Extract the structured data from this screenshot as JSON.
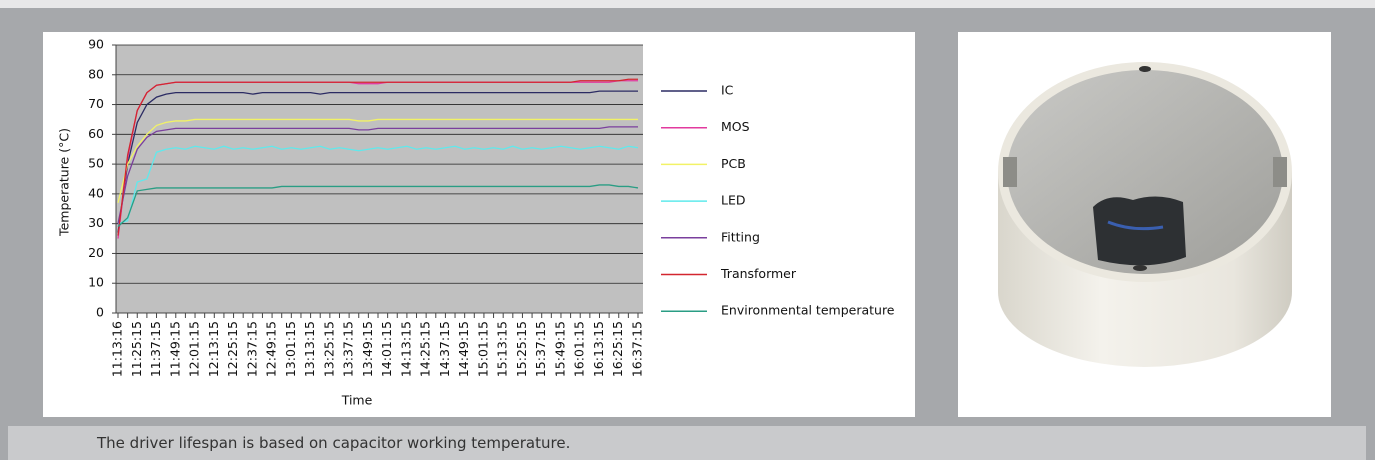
{
  "chart_data": {
    "type": "line",
    "x_label": "Time",
    "y_label": "Temperature (°C)",
    "categories": [
      "11:13:16",
      null,
      "11:25:15",
      null,
      "11:37:15",
      null,
      "11:49:15",
      null,
      "12:01:15",
      null,
      "12:13:15",
      null,
      "12:25:15",
      null,
      "12:37:15",
      null,
      "12:49:15",
      null,
      "13:01:15",
      null,
      "13:13:15",
      null,
      "13:25:15",
      null,
      "13:37:15",
      null,
      "13:49:15",
      null,
      "14:01:15",
      null,
      "14:13:15",
      null,
      "14:25:15",
      null,
      "14:37:15",
      null,
      "14:49:15",
      null,
      "15:01:15",
      null,
      "15:13:15",
      null,
      "15:25:15",
      null,
      "15:37:15",
      null,
      "15:49:15",
      null,
      "16:01:15",
      null,
      "16:13:15",
      null,
      "16:25:15",
      null,
      "16:37:15"
    ],
    "series": [
      {
        "name": "IC",
        "color": "#2b2b63",
        "values": [
          27,
          50,
          64,
          70,
          72.5,
          73.5,
          74,
          74,
          74,
          74,
          74,
          74,
          74,
          74,
          73.5,
          74,
          74,
          74,
          74,
          74,
          74,
          73.5,
          74,
          74,
          74,
          74,
          74,
          74,
          74,
          74,
          74,
          74,
          74,
          74,
          74,
          74,
          74,
          74,
          74,
          74,
          74,
          74,
          74,
          74,
          74,
          74,
          74,
          74,
          74,
          74,
          74.5,
          74.5,
          74.5,
          74.5,
          74.5
        ]
      },
      {
        "name": "MOS",
        "color": "#e23a9e",
        "values": [
          25,
          52,
          68,
          74,
          76.5,
          77,
          77.5,
          77.5,
          77.5,
          77.5,
          77.5,
          77.5,
          77.5,
          77.5,
          77.5,
          77.5,
          77.5,
          77.5,
          77.5,
          77.5,
          77.5,
          77.5,
          77.5,
          77.5,
          77.5,
          77,
          77,
          77,
          77.5,
          77.5,
          77.5,
          77.5,
          77.5,
          77.5,
          77.5,
          77.5,
          77.5,
          77.5,
          77.5,
          77.5,
          77.5,
          77.5,
          77.5,
          77.5,
          77.5,
          77.5,
          77.5,
          77.5,
          77.5,
          77.5,
          77.5,
          77.5,
          78,
          78,
          78
        ]
      },
      {
        "name": "PCB",
        "color": "#f2f266",
        "values": [
          37,
          50,
          56,
          60,
          63,
          64,
          64.5,
          64.5,
          65,
          65,
          65,
          65,
          65,
          65,
          65,
          65,
          65,
          65,
          65,
          65,
          65,
          65,
          65,
          65,
          65,
          64.5,
          64.5,
          65,
          65,
          65,
          65,
          65,
          65,
          65,
          65,
          65,
          65,
          65,
          65,
          65,
          65,
          65,
          65,
          65,
          65,
          65,
          65,
          65,
          65,
          65,
          65,
          65,
          65,
          65,
          65
        ]
      },
      {
        "name": "LED",
        "color": "#5fe9ec",
        "values": [
          30,
          31,
          44,
          45,
          54,
          55,
          55.5,
          55,
          56,
          55.5,
          55,
          56,
          55,
          55.5,
          55,
          55.5,
          56,
          55,
          55.5,
          55,
          55.5,
          56,
          55,
          55.5,
          55,
          54.5,
          55,
          55.5,
          55,
          55.5,
          56,
          55,
          55.5,
          55,
          55.5,
          56,
          55,
          55.5,
          55,
          55.5,
          55,
          56,
          55,
          55.5,
          55,
          55.5,
          56,
          55.5,
          55,
          55.5,
          56,
          55.5,
          55,
          56,
          55.5
        ]
      },
      {
        "name": "Fitting",
        "color": "#7a3f9d",
        "values": [
          30,
          46,
          55,
          59,
          61,
          61.5,
          62,
          62,
          62,
          62,
          62,
          62,
          62,
          62,
          62,
          62,
          62,
          62,
          62,
          62,
          62,
          62,
          62,
          62,
          62,
          61.5,
          61.5,
          62,
          62,
          62,
          62,
          62,
          62,
          62,
          62,
          62,
          62,
          62,
          62,
          62,
          62,
          62,
          62,
          62,
          62,
          62,
          62,
          62,
          62,
          62,
          62,
          62.5,
          62.5,
          62.5,
          62.5
        ]
      },
      {
        "name": "Transformer",
        "color": "#d3262f",
        "values": [
          26,
          53,
          68,
          74,
          76.5,
          77,
          77.5,
          77.5,
          77.5,
          77.5,
          77.5,
          77.5,
          77.5,
          77.5,
          77.5,
          77.5,
          77.5,
          77.5,
          77.5,
          77.5,
          77.5,
          77.5,
          77.5,
          77.5,
          77.5,
          77.5,
          77.5,
          77.5,
          77.5,
          77.5,
          77.5,
          77.5,
          77.5,
          77.5,
          77.5,
          77.5,
          77.5,
          77.5,
          77.5,
          77.5,
          77.5,
          77.5,
          77.5,
          77.5,
          77.5,
          77.5,
          77.5,
          77.5,
          78,
          78,
          78,
          78,
          78,
          78.5,
          78.5
        ]
      },
      {
        "name": "Environmental temperature",
        "color": "#2a9d84",
        "values": [
          29,
          32,
          41,
          41.5,
          42,
          42,
          42,
          42,
          42,
          42,
          42,
          42,
          42,
          42,
          42,
          42,
          42,
          42.5,
          42.5,
          42.5,
          42.5,
          42.5,
          42.5,
          42.5,
          42.5,
          42.5,
          42.5,
          42.5,
          42.5,
          42.5,
          42.5,
          42.5,
          42.5,
          42.5,
          42.5,
          42.5,
          42.5,
          42.5,
          42.5,
          42.5,
          42.5,
          42.5,
          42.5,
          42.5,
          42.5,
          42.5,
          42.5,
          42.5,
          42.5,
          42.5,
          43,
          43,
          42.5,
          42.5,
          42
        ]
      }
    ],
    "ylim": [
      0,
      90
    ],
    "yticks": [
      0,
      10,
      20,
      30,
      40,
      50,
      60,
      70,
      80,
      90
    ],
    "grid": true,
    "legend": "right",
    "plot_background": "#c0c0c0"
  },
  "caption": "The driver lifespan is based on capacitor working temperature."
}
